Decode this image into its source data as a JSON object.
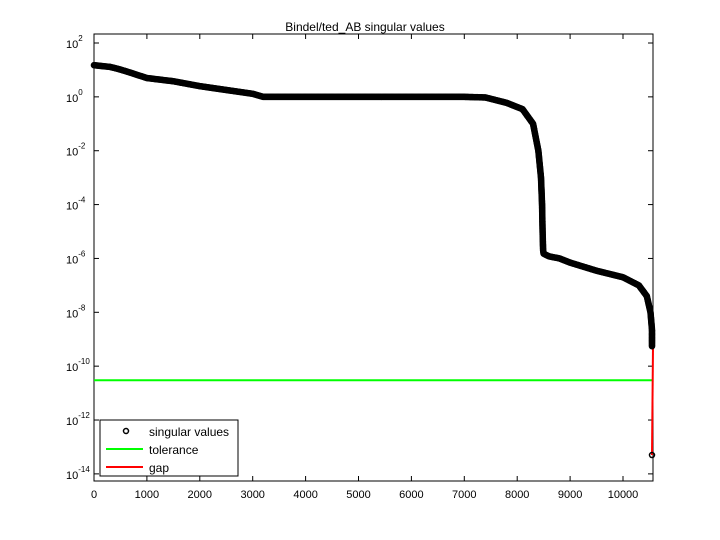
{
  "figure": {
    "title": "Bindel/ted_AB singular values",
    "legend": [
      {
        "label": "singular values",
        "marker": "circle",
        "color": "#000000"
      },
      {
        "label": "tolerance",
        "marker": "line",
        "color": "#00ff00"
      },
      {
        "label": "gap",
        "marker": "line",
        "color": "#ff0000"
      }
    ]
  },
  "chart_data": {
    "type": "scatter",
    "title": "Bindel/ted_AB singular values",
    "xlabel": "",
    "ylabel": "",
    "yscale": "log",
    "xlim": [
      0,
      10567
    ],
    "ylim": [
      1e-15,
      100.0
    ],
    "x_ticks": [
      0,
      1000,
      2000,
      3000,
      4000,
      5000,
      6000,
      7000,
      8000,
      9000,
      10000
    ],
    "y_ticks_exponents": [
      2,
      0,
      -2,
      -4,
      -6,
      -8,
      -10,
      -12,
      -14
    ],
    "grid": false,
    "legend_position": "lower left",
    "series": [
      {
        "name": "singular values",
        "marker": "o",
        "color": "#000000",
        "x": [
          0,
          300,
          450,
          600,
          1000,
          1500,
          2000,
          2500,
          3000,
          3200,
          4000,
          5000,
          6000,
          7000,
          7400,
          7800,
          8100,
          8300,
          8400,
          8450,
          8470,
          8480,
          8490,
          8500,
          8600,
          8800,
          9000,
          9500,
          10000,
          10300,
          10450,
          10520,
          10550,
          10560,
          10567
        ],
        "values": [
          15,
          13,
          11,
          9,
          5,
          3.8,
          2.5,
          1.8,
          1.3,
          1.0,
          1.0,
          1.0,
          1.0,
          1.0,
          0.95,
          0.6,
          0.35,
          0.1,
          0.01,
          0.001,
          0.0001,
          1e-05,
          2e-06,
          1.5e-06,
          1.2e-06,
          1e-06,
          7e-07,
          3.5e-07,
          2e-07,
          1e-07,
          4e-08,
          1e-08,
          2e-09,
          5e-10,
          5e-14
        ]
      },
      {
        "name": "tolerance",
        "type": "line",
        "color": "#00ff00",
        "x": [
          0,
          10567
        ],
        "values": [
          3e-11,
          3e-11
        ]
      },
      {
        "name": "gap",
        "type": "line",
        "color": "#ff0000",
        "x": [
          10567,
          10567
        ],
        "values": [
          5e-10,
          5e-14
        ]
      }
    ]
  }
}
